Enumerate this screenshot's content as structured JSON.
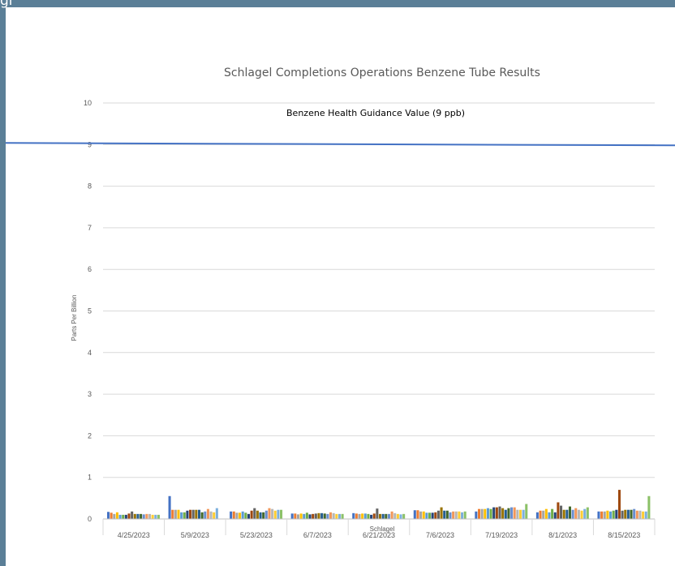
{
  "top_text": "gr",
  "chart_data": {
    "type": "bar",
    "title": "Schlagel Completions Operations Benzene Tube Results",
    "xlabel": "Schlagel",
    "ylabel": "Parts Per Billion",
    "ylim": [
      0,
      10
    ],
    "yticks": [
      "0",
      "1",
      "2",
      "3",
      "4",
      "5",
      "6",
      "7",
      "8",
      "9",
      "10"
    ],
    "grid": true,
    "categories": [
      "4/25/2023",
      "5/9/2023",
      "5/23/2023",
      "6/7/2023",
      "6/21/2023",
      "7/6/2023",
      "7/19/2023",
      "8/1/2023",
      "8/15/2023"
    ],
    "series_colors": [
      "#4472c4",
      "#ed7d31",
      "#a5a5a5",
      "#ffc000",
      "#5b9bd5",
      "#70ad47",
      "#264478",
      "#9e480e",
      "#636363",
      "#997300",
      "#255e91",
      "#43682b",
      "#698ed0",
      "#f1975a",
      "#b7b7b7",
      "#ffcd33",
      "#7cafdd",
      "#8cc168"
    ],
    "values": [
      [
        0.17,
        0.15,
        0.12,
        0.16,
        0.1,
        0.1,
        0.1,
        0.13,
        0.18,
        0.12,
        0.12,
        0.12,
        0.11,
        0.12,
        0.12,
        0.1,
        0.1,
        0.1
      ],
      [
        0.55,
        0.22,
        0.22,
        0.22,
        0.16,
        0.16,
        0.2,
        0.22,
        0.22,
        0.22,
        0.22,
        0.16,
        0.18,
        0.24,
        0.18,
        0.16,
        0.26,
        0.0
      ],
      [
        0.18,
        0.18,
        0.15,
        0.15,
        0.18,
        0.15,
        0.12,
        0.2,
        0.26,
        0.2,
        0.16,
        0.16,
        0.2,
        0.26,
        0.24,
        0.2,
        0.22,
        0.22
      ],
      [
        0.13,
        0.13,
        0.11,
        0.13,
        0.12,
        0.15,
        0.11,
        0.12,
        0.13,
        0.14,
        0.14,
        0.13,
        0.12,
        0.16,
        0.14,
        0.12,
        0.12,
        0.12
      ],
      [
        0.14,
        0.13,
        0.12,
        0.13,
        0.13,
        0.12,
        0.1,
        0.13,
        0.25,
        0.12,
        0.12,
        0.12,
        0.12,
        0.18,
        0.14,
        0.12,
        0.11,
        0.12
      ],
      [
        0.21,
        0.21,
        0.18,
        0.18,
        0.15,
        0.15,
        0.15,
        0.16,
        0.2,
        0.28,
        0.2,
        0.2,
        0.16,
        0.18,
        0.18,
        0.18,
        0.16,
        0.18
      ],
      [
        0.18,
        0.24,
        0.24,
        0.24,
        0.26,
        0.24,
        0.28,
        0.28,
        0.3,
        0.26,
        0.22,
        0.26,
        0.28,
        0.28,
        0.22,
        0.22,
        0.22,
        0.36
      ],
      [
        0.16,
        0.2,
        0.2,
        0.24,
        0.16,
        0.24,
        0.16,
        0.4,
        0.32,
        0.22,
        0.22,
        0.3,
        0.22,
        0.26,
        0.22,
        0.2,
        0.24,
        0.28
      ],
      [
        0.18,
        0.18,
        0.18,
        0.2,
        0.18,
        0.2,
        0.22,
        0.7,
        0.2,
        0.22,
        0.22,
        0.22,
        0.24,
        0.2,
        0.2,
        0.18,
        0.18,
        0.55
      ]
    ],
    "reference_line": {
      "label": "Benzene Health Guidance Value (9 ppb)",
      "value": 9,
      "color": "#4472c4"
    }
  }
}
